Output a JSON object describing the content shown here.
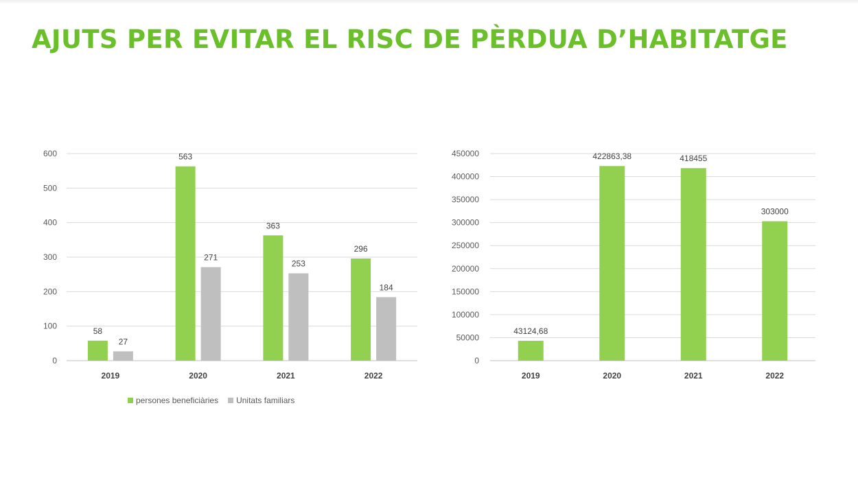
{
  "page": {
    "title": "AJUTS PER EVITAR EL RISC DE PÈRDUA D’HABITATGE"
  },
  "colors": {
    "title": "#6abf2a",
    "green": "#92d050",
    "gray": "#bfbfbf"
  },
  "chart_data": [
    {
      "type": "bar",
      "title": "",
      "categories": [
        "2019",
        "2020",
        "2021",
        "2022"
      ],
      "series": [
        {
          "name": "persones beneficiàries",
          "values": [
            58,
            563,
            363,
            296
          ],
          "labels": [
            "58",
            "563",
            "363",
            "296"
          ],
          "color": "#92d050"
        },
        {
          "name": "Unitats familiars",
          "values": [
            27,
            271,
            253,
            184
          ],
          "labels": [
            "27",
            "271",
            "253",
            "184"
          ],
          "color": "#bfbfbf"
        }
      ],
      "ylim": [
        0,
        600
      ],
      "yticks": [
        0,
        100,
        200,
        300,
        400,
        500,
        600
      ],
      "grid": true,
      "legend": "bottom"
    },
    {
      "type": "bar",
      "title": "",
      "categories": [
        "2019",
        "2020",
        "2021",
        "2022"
      ],
      "series": [
        {
          "values": [
            43124.68,
            422863.38,
            418455,
            303000
          ],
          "labels": [
            "43124,68",
            "422863,38",
            "418455",
            "303000"
          ],
          "color": "#92d050"
        }
      ],
      "ylim": [
        0,
        450000
      ],
      "yticks": [
        0,
        50000,
        100000,
        150000,
        200000,
        250000,
        300000,
        350000,
        400000,
        450000
      ],
      "grid": true,
      "legend": "none"
    }
  ]
}
